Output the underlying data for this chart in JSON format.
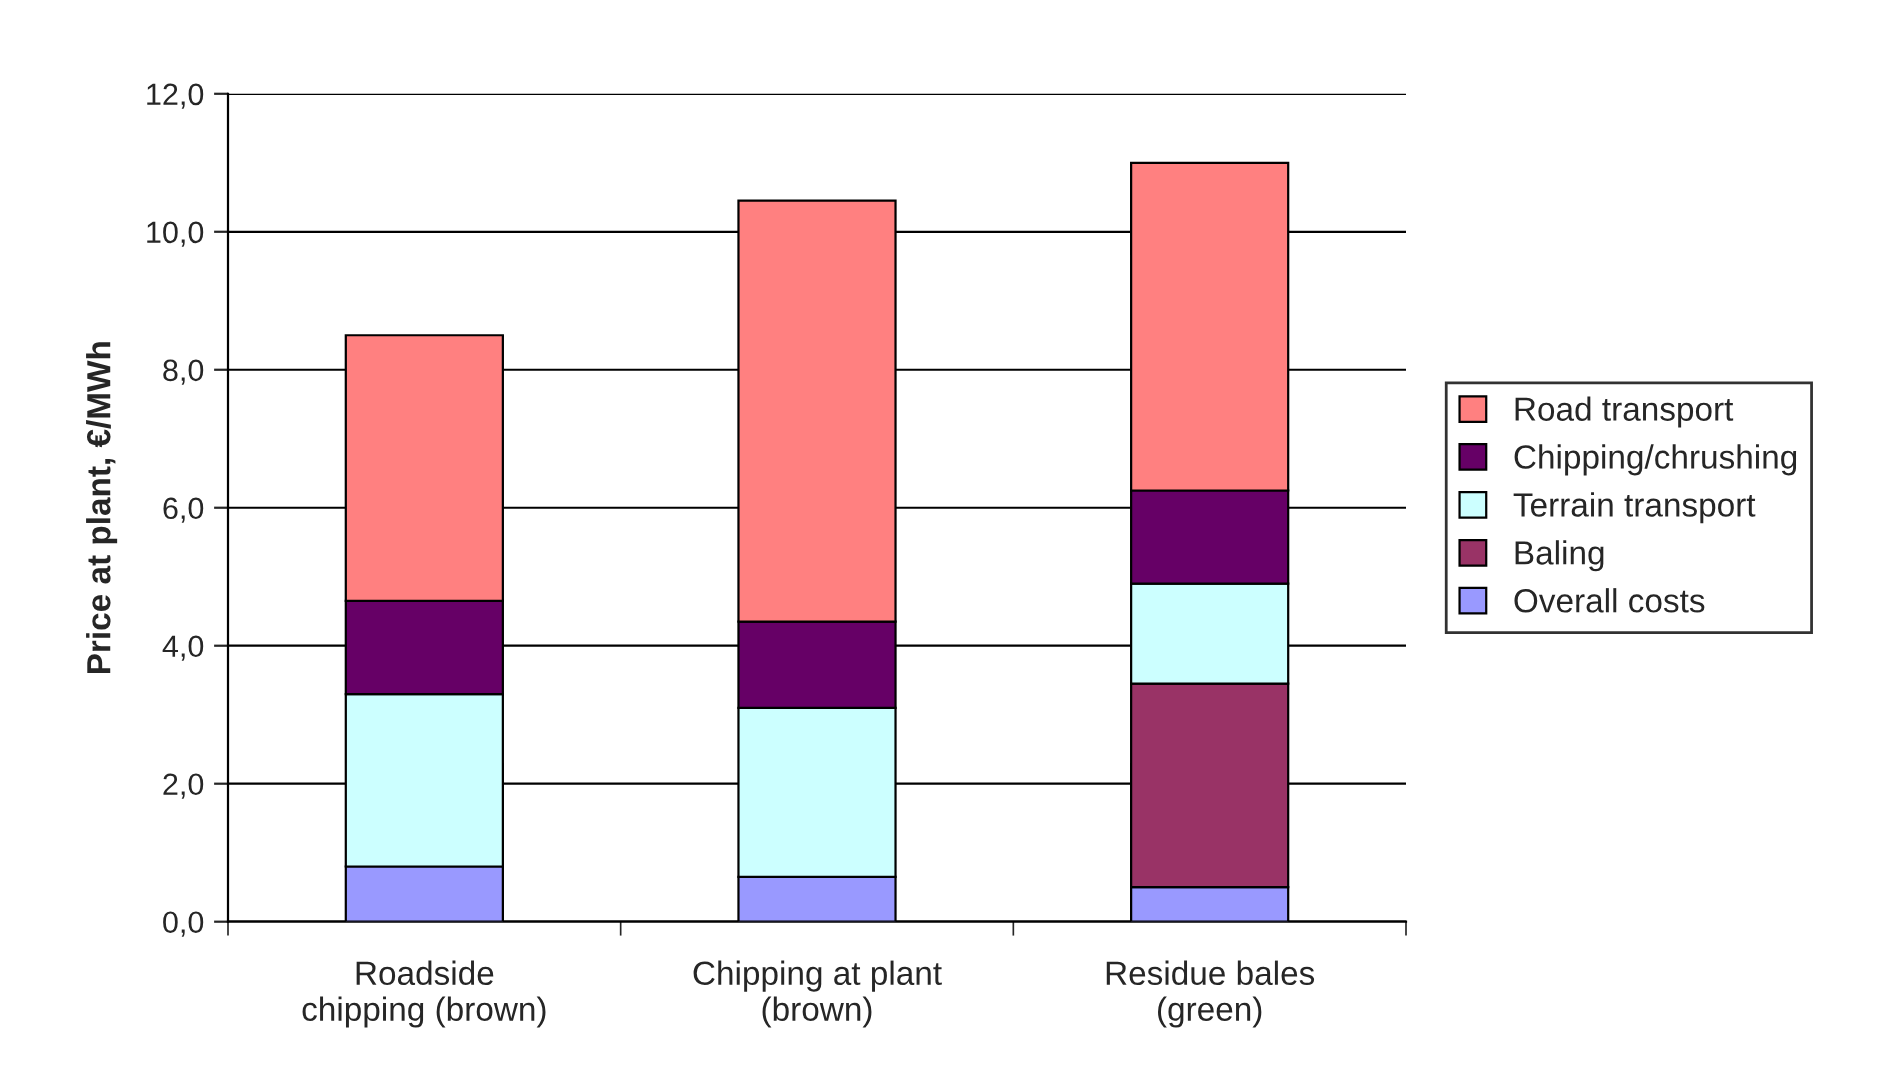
{
  "chart_data": {
    "type": "bar",
    "stacked": true,
    "ylabel": "Price at plant, €/MWh",
    "categories": [
      "Roadside\nchipping (brown)",
      "Chipping at plant\n(brown)",
      "Residue bales\n(green)"
    ],
    "series": [
      {
        "name": "Overall costs",
        "color": "#9999ff",
        "values": [
          0.8,
          0.65,
          0.5
        ]
      },
      {
        "name": "Baling",
        "color": "#993366",
        "values": [
          null,
          null,
          2.95
        ]
      },
      {
        "name": "Terrain transport",
        "color": "#ccffff",
        "values": [
          2.5,
          2.45,
          1.45
        ]
      },
      {
        "name": "Chipping/chrushing",
        "color": "#660066",
        "values": [
          1.35,
          1.25,
          1.35
        ]
      },
      {
        "name": "Road transport",
        "color": "#ff8080",
        "values": [
          3.85,
          6.1,
          4.75
        ]
      }
    ],
    "ylim": [
      0,
      12
    ],
    "yticks": [
      {
        "value": 0,
        "label": "0,0"
      },
      {
        "value": 2,
        "label": "2,0"
      },
      {
        "value": 4,
        "label": "4,0"
      },
      {
        "value": 6,
        "label": "6,0"
      },
      {
        "value": 8,
        "label": "8,0"
      },
      {
        "value": 10,
        "label": "10,0"
      },
      {
        "value": 12,
        "label": "12,0"
      }
    ],
    "grid": "y",
    "legend": "right"
  }
}
